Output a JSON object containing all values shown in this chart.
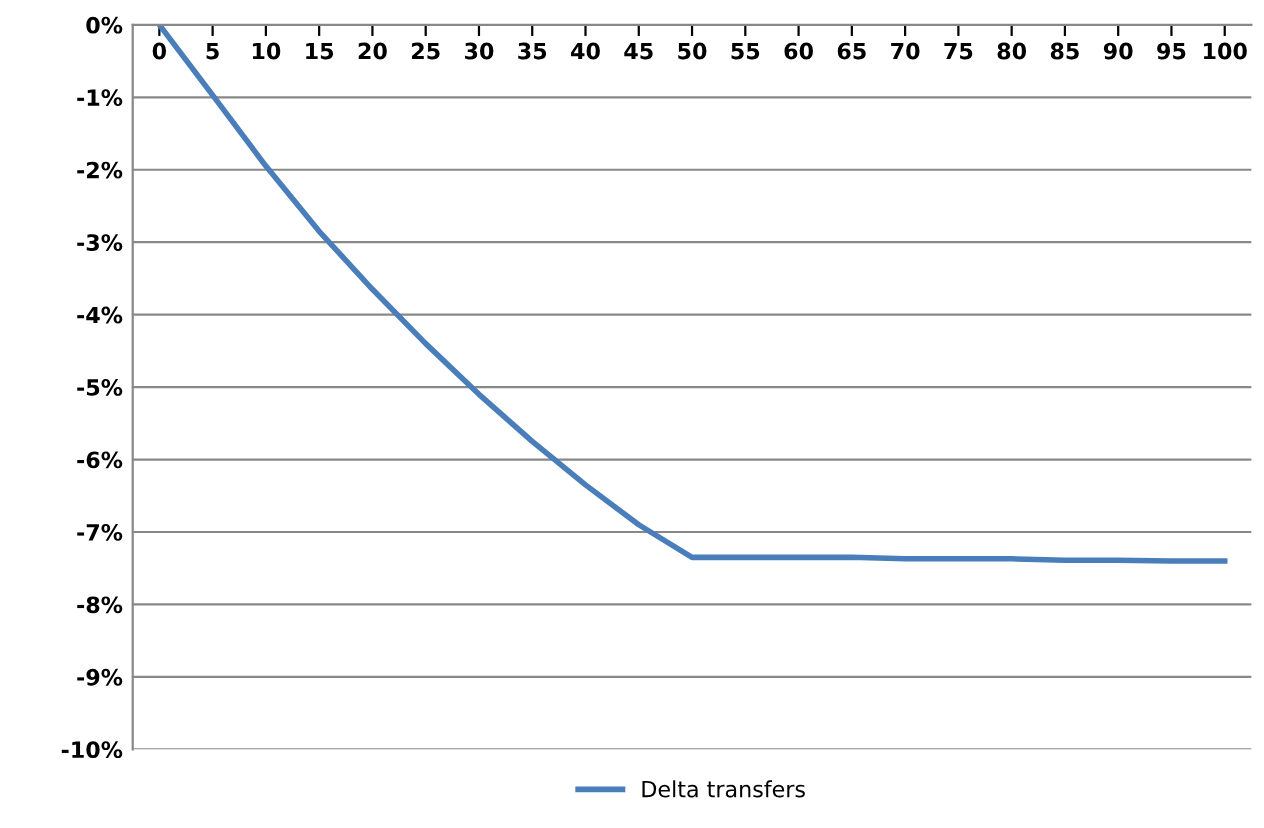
{
  "chart_data": {
    "type": "line",
    "categories": [
      "0",
      "5",
      "10",
      "15",
      "20",
      "25",
      "30",
      "35",
      "40",
      "45",
      "50",
      "55",
      "60",
      "65",
      "70",
      "75",
      "80",
      "85",
      "90",
      "95",
      "100"
    ],
    "series": [
      {
        "name": "Delta transfers",
        "color": "#4a7ebb",
        "values": [
          0,
          -0.97,
          -1.95,
          -2.85,
          -3.65,
          -4.4,
          -5.1,
          -5.75,
          -6.35,
          -6.9,
          -7.35,
          -7.35,
          -7.35,
          -7.35,
          -7.37,
          -7.37,
          -7.37,
          -7.39,
          -7.39,
          -7.4,
          -7.4
        ]
      }
    ],
    "ylim": [
      -10,
      0
    ],
    "yticks": [
      {
        "value": 0,
        "label": "0%"
      },
      {
        "value": -1,
        "label": "-1%"
      },
      {
        "value": -2,
        "label": "-2%"
      },
      {
        "value": -3,
        "label": "-3%"
      },
      {
        "value": -4,
        "label": "-4%"
      },
      {
        "value": -5,
        "label": "-5%"
      },
      {
        "value": -6,
        "label": "-6%"
      },
      {
        "value": -7,
        "label": "-7%"
      },
      {
        "value": -8,
        "label": "-8%"
      },
      {
        "value": -9,
        "label": "-9%"
      },
      {
        "value": -10,
        "label": "-10%"
      }
    ],
    "grid": "y",
    "legend": "bottom",
    "marker": "none",
    "line_style": "solid"
  }
}
